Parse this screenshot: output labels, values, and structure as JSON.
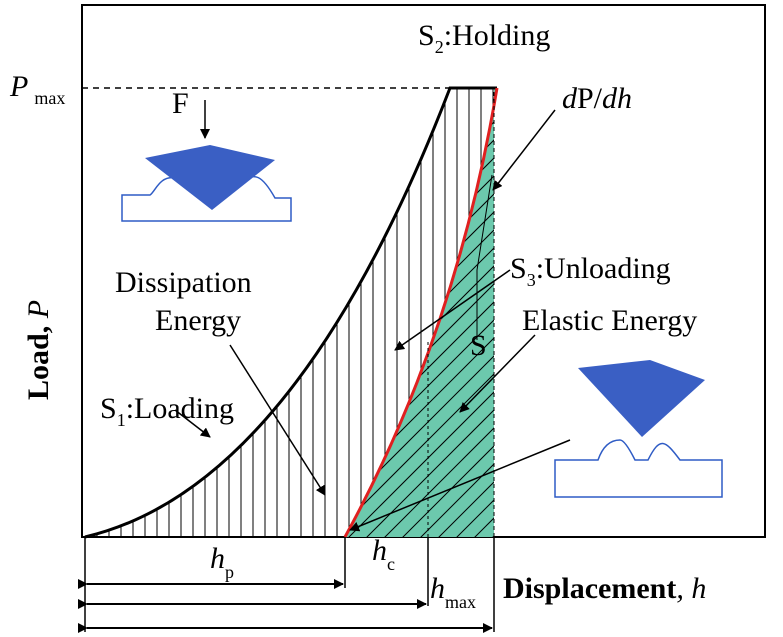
{
  "labels": {
    "holding": {
      "symbol": "S",
      "sub": "2",
      "text": ":Holding"
    },
    "pmax": {
      "symbol": "P",
      "sub": "max"
    },
    "force": "F",
    "slope": {
      "d": "d",
      "p": "P/",
      "dh": "dh"
    },
    "unloading": {
      "symbol": "S",
      "sub": "3",
      "text": ":Unloading"
    },
    "elastic": "Elastic Energy",
    "dissipation": [
      "Dissipation",
      "Energy"
    ],
    "stiffness": "S",
    "loading": {
      "symbol": "S",
      "sub": "1",
      "text": ":Loading"
    },
    "hp": {
      "symbol": "h",
      "sub": "p"
    },
    "hc": {
      "symbol": "h",
      "sub": "c"
    },
    "hmax": {
      "symbol": "h",
      "sub": "max"
    }
  },
  "axes": {
    "y_label": {
      "text": "Load, ",
      "var": "P"
    },
    "x_label": {
      "text": "Displacement",
      "var": ", h"
    }
  }
}
